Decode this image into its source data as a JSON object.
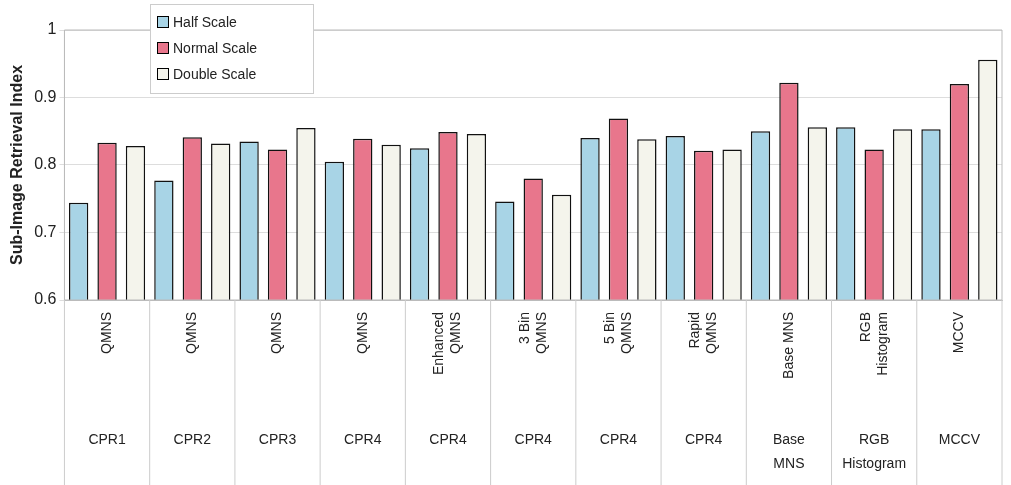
{
  "chart_data": {
    "type": "bar",
    "ylabel": "Sub-Image Retrieval Index",
    "categories": [
      "QMNS",
      "QMNS",
      "QMNS",
      "QMNS",
      "Enhanced\nQMNS",
      "3 Bin\nQMNS",
      "5 Bin\nQMNS",
      "Rapid\nQMNS",
      "Base MNS",
      "RGB\nHistogram",
      "MCCV"
    ],
    "annotations": [
      "CPR1",
      "CPR2",
      "CPR3",
      "CPR4",
      "CPR4",
      "CPR4",
      "CPR4",
      "CPR4",
      "Base\nMNS",
      "RGB\nHistogram",
      "MCCV"
    ],
    "series": [
      {
        "name": "Half Scale",
        "color": "#a8d4e6",
        "values": [
          0.744,
          0.777,
          0.835,
          0.805,
          0.825,
          0.746,
          0.84,
          0.843,
          0.85,
          0.856,
          0.853
        ]
      },
      {
        "name": "Normal Scale",
        "color": "#e8768c",
        "values": [
          0.833,
          0.841,
          0.823,
          0.839,
          0.849,
          0.78,
          0.869,
          0.821,
          0.922,
          0.823,
          0.92
        ]
      },
      {
        "name": "Double Scale",
        "color": "#f4f4ec",
        "values": [
          0.828,
          0.832,
          0.855,
          0.83,
          0.846,
          0.756,
          0.838,
          0.823,
          0.856,
          0.853,
          0.956
        ]
      }
    ],
    "ylim": [
      0.6,
      1
    ],
    "yticks": [
      0.6,
      0.7,
      0.8,
      0.9,
      1
    ],
    "grid": "y",
    "legend": "top left"
  }
}
